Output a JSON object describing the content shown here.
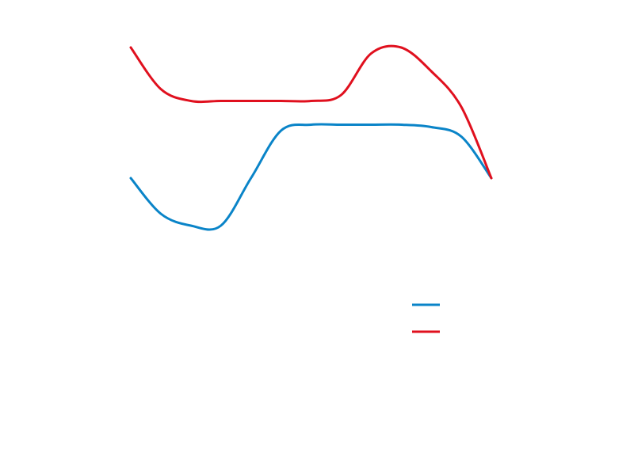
{
  "chart_data": {
    "type": "line",
    "title": "",
    "xlabel": "",
    "ylabel": "",
    "grid": false,
    "axes_visible": false,
    "legend_placement": "lower-right",
    "x": [
      0,
      1,
      2,
      3,
      4,
      5,
      6,
      7,
      8,
      9,
      10,
      11,
      12
    ],
    "xlim": [
      0,
      12
    ],
    "ylim": [
      -4,
      0
    ],
    "smooth": true,
    "series": [
      {
        "color": "#0a84c8",
        "values": [
          -1.5,
          -1.8,
          -1.9,
          -1.9,
          -1.5,
          -1.1,
          -1.05,
          -1.05,
          -1.05,
          -1.05,
          -1.07,
          -1.15,
          -1.5
        ]
      },
      {
        "color": "#e0101e",
        "values": [
          -0.4,
          -0.75,
          -0.85,
          -0.85,
          -0.85,
          -0.85,
          -0.85,
          -0.8,
          -0.45,
          -0.4,
          -0.6,
          -0.9,
          -1.5
        ]
      }
    ]
  }
}
